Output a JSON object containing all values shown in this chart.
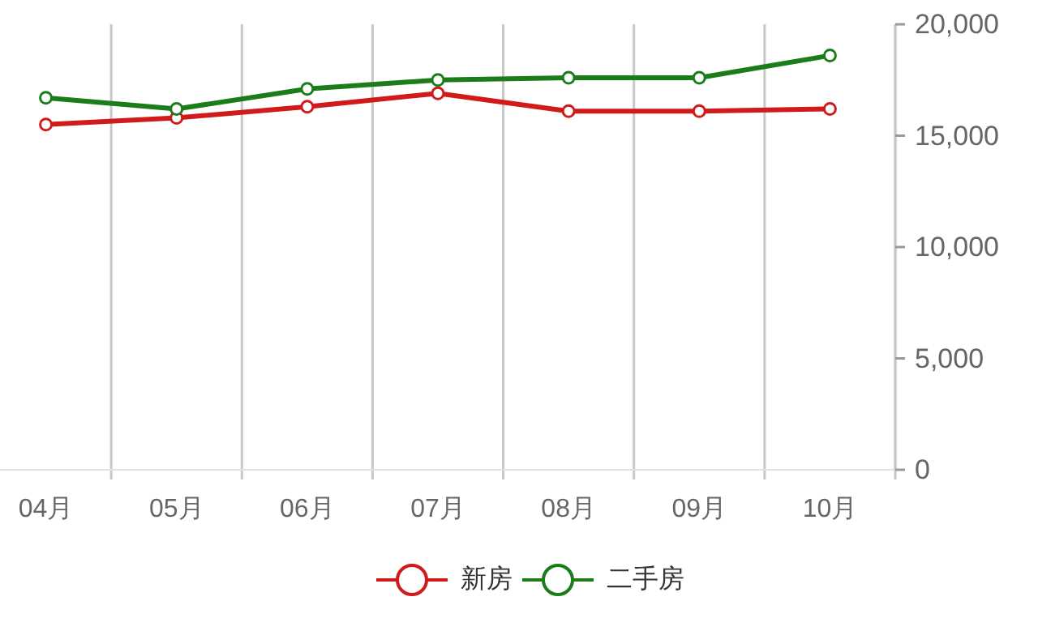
{
  "chart_data": {
    "type": "line",
    "categories": [
      "04月",
      "05月",
      "06月",
      "07月",
      "08月",
      "09月",
      "10月"
    ],
    "series": [
      {
        "name": "新房",
        "color": "#d11a1a",
        "values": [
          15500,
          15800,
          16300,
          16900,
          16100,
          16100,
          16200
        ]
      },
      {
        "name": "二手房",
        "color": "#1a7d1a",
        "values": [
          16700,
          16200,
          17100,
          17500,
          17600,
          17600,
          18600
        ]
      }
    ],
    "ylim": [
      0,
      20000
    ],
    "yticks": [
      0,
      {
        "value": 5000,
        "label": "5,000"
      },
      {
        "value": 10000,
        "label": "10,000"
      },
      {
        "value": 15000,
        "label": "15,000"
      },
      {
        "value": 20000,
        "label": "20,000"
      }
    ],
    "grid": "x",
    "legend": "bottom",
    "marker": "circle",
    "line_style": "solid"
  }
}
